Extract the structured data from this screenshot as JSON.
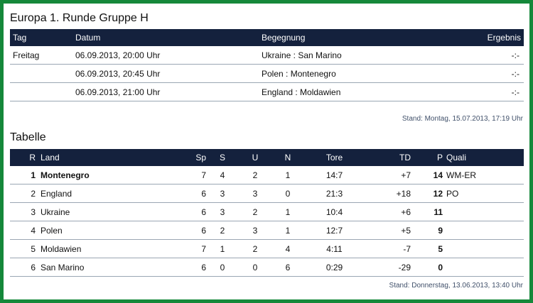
{
  "header": {
    "title": "Europa 1. Runde Gruppe H"
  },
  "schedule": {
    "columns": {
      "tag": "Tag",
      "datum": "Datum",
      "begegnung": "Begegnung",
      "ergebnis": "Ergebnis"
    },
    "rows": [
      {
        "tag": "Freitag",
        "datum": "06.09.2013, 20:00 Uhr",
        "begegnung": "Ukraine : San Marino",
        "ergebnis": "-:-"
      },
      {
        "tag": "",
        "datum": "06.09.2013, 20:45 Uhr",
        "begegnung": "Polen : Montenegro",
        "ergebnis": "-:-"
      },
      {
        "tag": "",
        "datum": "06.09.2013, 21:00 Uhr",
        "begegnung": "England : Moldawien",
        "ergebnis": "-:-"
      }
    ],
    "stand": "Stand: Montag, 15.07.2013, 17:19 Uhr"
  },
  "tabelle": {
    "title": "Tabelle",
    "columns": {
      "r": "R",
      "land": "Land",
      "sp": "Sp",
      "s": "S",
      "u": "U",
      "n": "N",
      "tore": "Tore",
      "td": "TD",
      "p": "P",
      "quali": "Quali"
    },
    "rows": [
      {
        "r": "1",
        "land": "Montenegro",
        "sp": "7",
        "s": "4",
        "u": "2",
        "n": "1",
        "tore": "14:7",
        "td": "+7",
        "p": "14",
        "quali": "WM-ER"
      },
      {
        "r": "2",
        "land": "England",
        "sp": "6",
        "s": "3",
        "u": "3",
        "n": "0",
        "tore": "21:3",
        "td": "+18",
        "p": "12",
        "quali": "PO"
      },
      {
        "r": "3",
        "land": "Ukraine",
        "sp": "6",
        "s": "3",
        "u": "2",
        "n": "1",
        "tore": "10:4",
        "td": "+6",
        "p": "11",
        "quali": ""
      },
      {
        "r": "4",
        "land": "Polen",
        "sp": "6",
        "s": "2",
        "u": "3",
        "n": "1",
        "tore": "12:7",
        "td": "+5",
        "p": "9",
        "quali": ""
      },
      {
        "r": "5",
        "land": "Moldawien",
        "sp": "7",
        "s": "1",
        "u": "2",
        "n": "4",
        "tore": "4:11",
        "td": "-7",
        "p": "5",
        "quali": ""
      },
      {
        "r": "6",
        "land": "San Marino",
        "sp": "6",
        "s": "0",
        "u": "0",
        "n": "6",
        "tore": "0:29",
        "td": "-29",
        "p": "0",
        "quali": ""
      }
    ],
    "stand": "Stand: Donnerstag, 13.06.2013, 13:40 Uhr"
  },
  "colors": {
    "frame": "#15883a",
    "header_bg": "#14213d",
    "divider": "#9aa6b3",
    "stand_text": "#40506a"
  }
}
